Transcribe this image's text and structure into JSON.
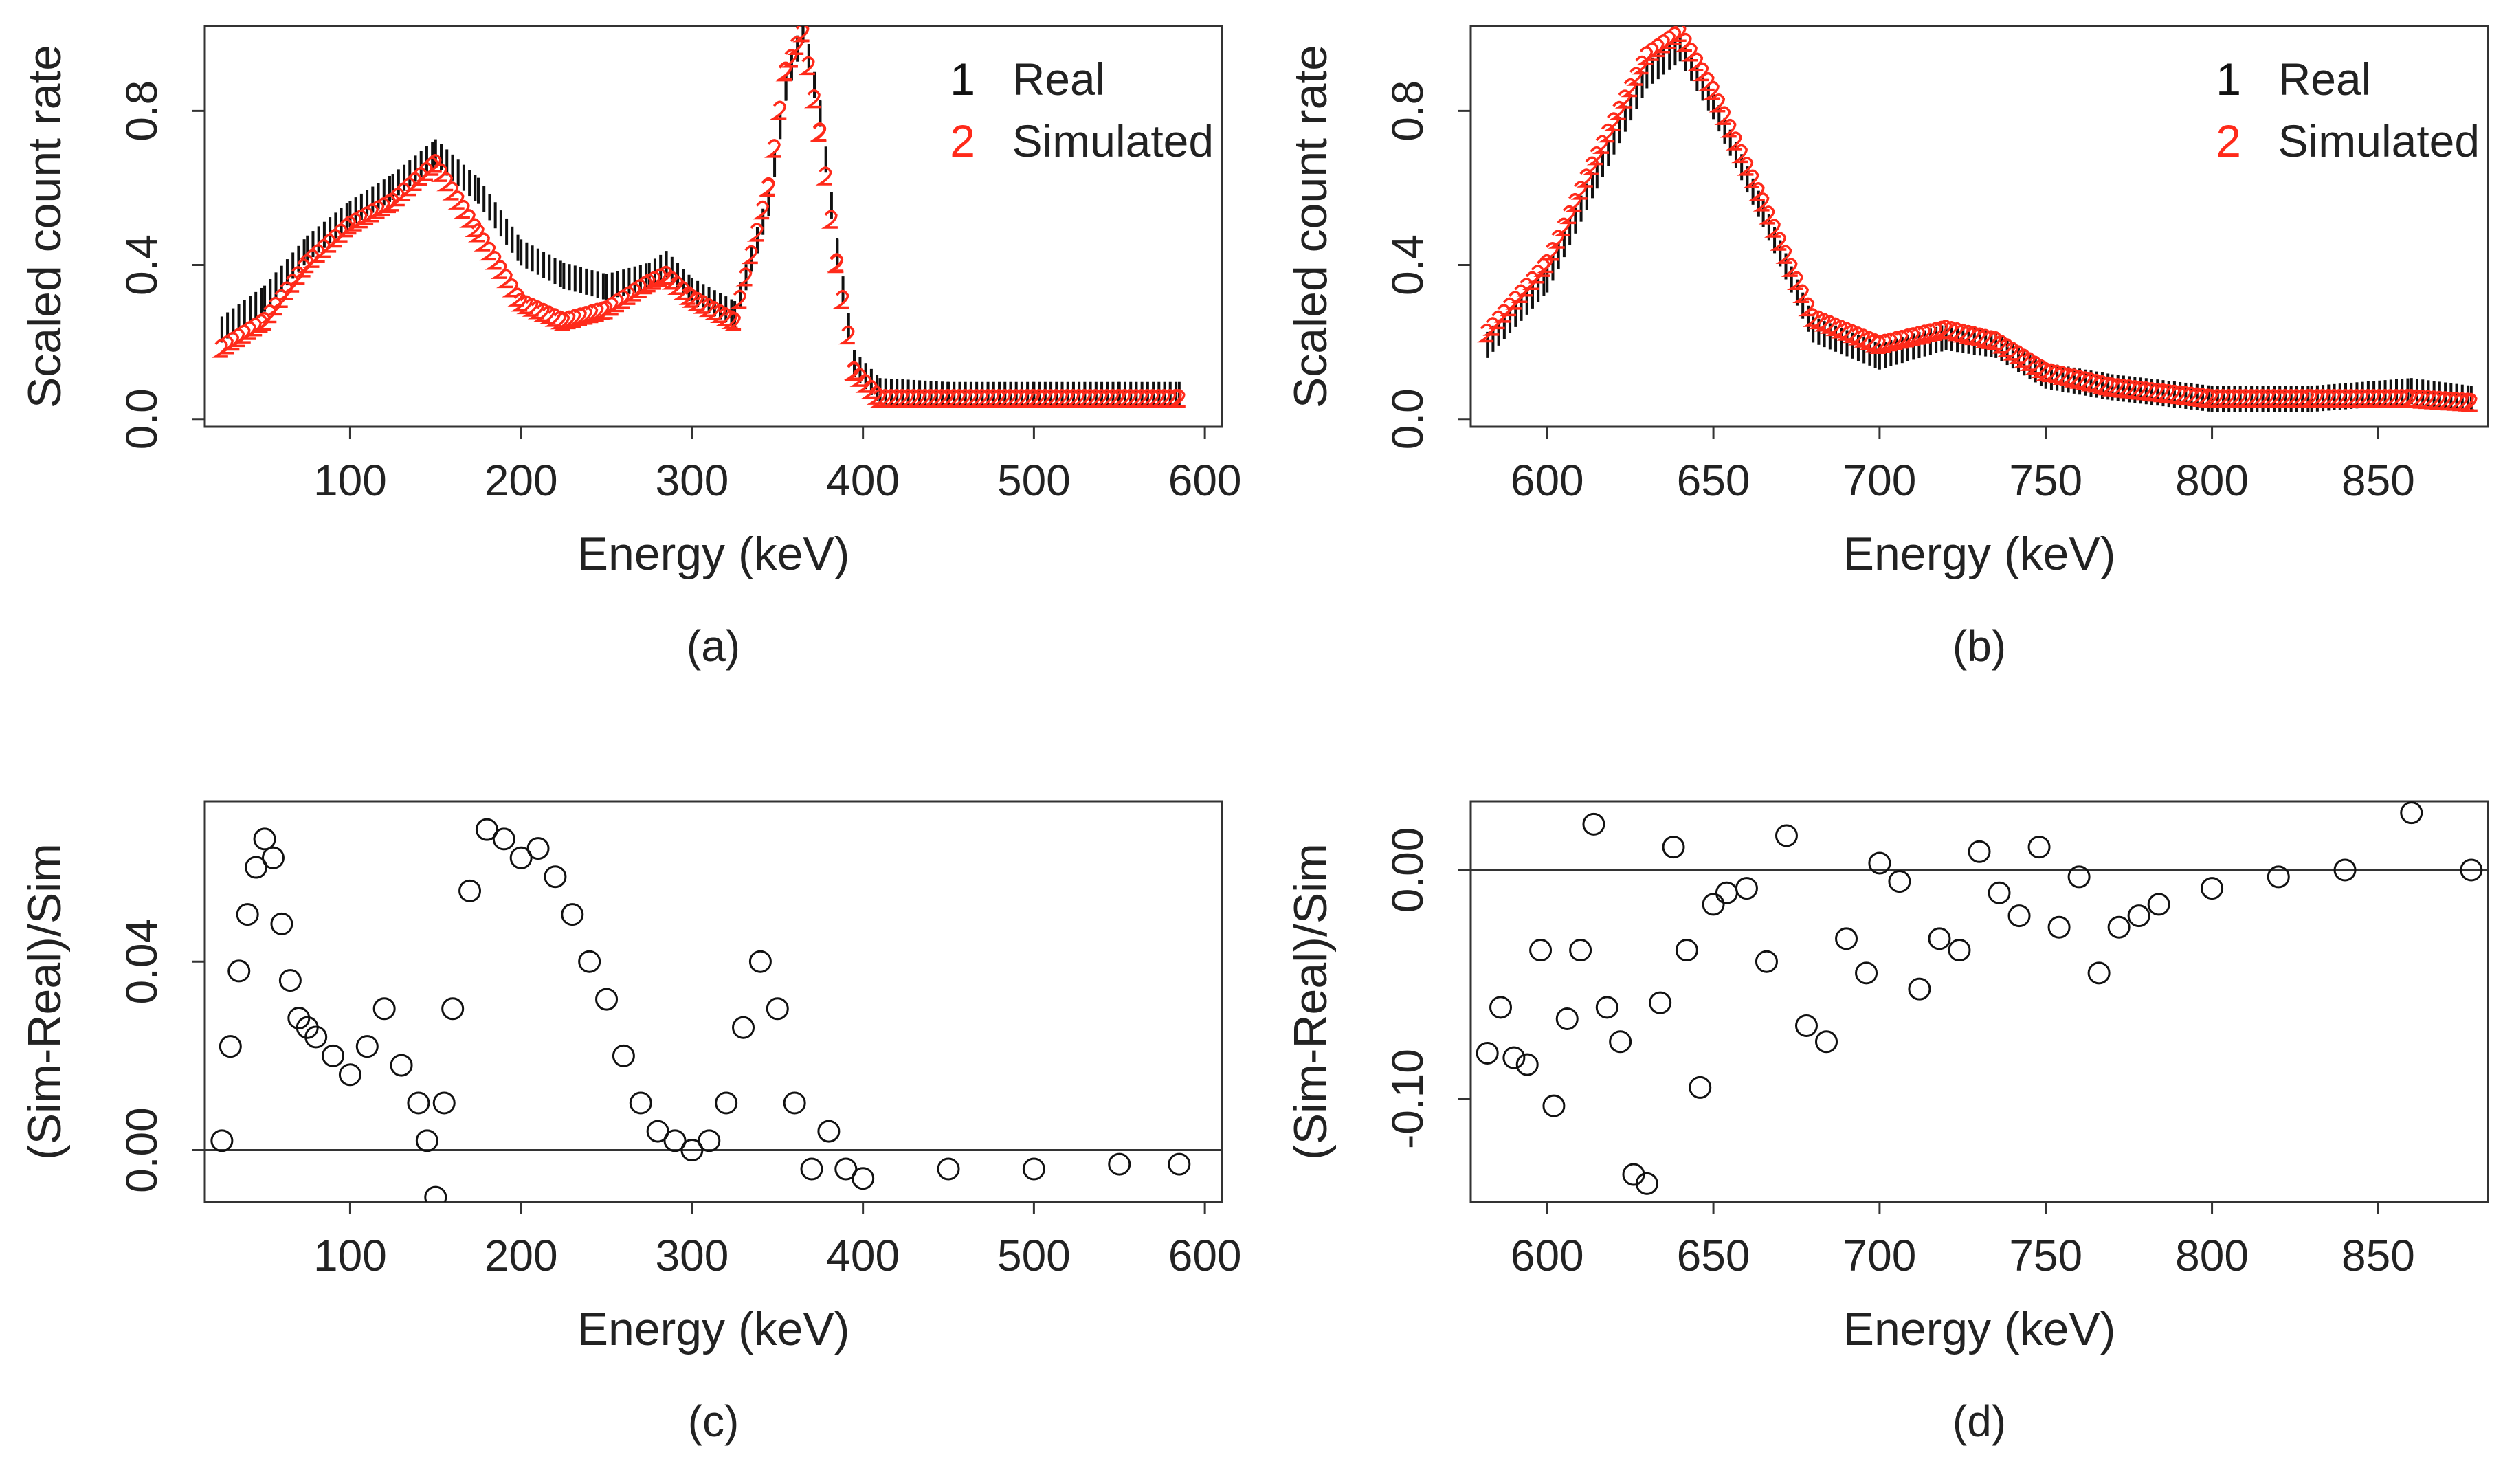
{
  "colors": {
    "real": "#111111",
    "simulated": "#ff2a1a",
    "axis": "#333333"
  },
  "chart_data": [
    {
      "id": "a",
      "type": "scatter",
      "caption": "(a)",
      "xlabel": "Energy (keV)",
      "ylabel": "Scaled count rate",
      "xlim": [
        15,
        610
      ],
      "ylim": [
        -0.02,
        1.02
      ],
      "xticks": [
        100,
        200,
        300,
        400,
        500,
        600
      ],
      "yticks": [
        0.0,
        0.4,
        0.8
      ],
      "ytick_labels": [
        "0.0",
        "0.4",
        "0.8"
      ],
      "legend": {
        "position": "top-right",
        "entries": [
          {
            "symbol": "1",
            "label": "Real",
            "color": "#111111"
          },
          {
            "symbol": "2",
            "label": "Simulated",
            "color": "#ff2a1a"
          }
        ]
      },
      "series": [
        {
          "name": "Real",
          "marker": "1",
          "color": "#111111",
          "x": [
            25,
            50,
            75,
            100,
            125,
            150,
            175,
            200,
            225,
            250,
            275,
            285,
            300,
            325,
            345,
            355,
            365,
            375,
            385,
            395,
            410,
            450,
            500,
            550,
            585
          ],
          "y": [
            0.22,
            0.3,
            0.43,
            0.52,
            0.59,
            0.68,
            0.58,
            0.42,
            0.36,
            0.33,
            0.36,
            0.39,
            0.32,
            0.26,
            0.55,
            0.85,
            1.0,
            0.78,
            0.42,
            0.13,
            0.06,
            0.05,
            0.05,
            0.05,
            0.05
          ]
        },
        {
          "name": "Simulated",
          "marker": "2",
          "color": "#ff2a1a",
          "x": [
            25,
            50,
            75,
            100,
            125,
            150,
            175,
            200,
            225,
            250,
            275,
            285,
            300,
            325,
            345,
            355,
            365,
            375,
            385,
            395,
            410,
            450,
            500,
            550,
            585
          ],
          "y": [
            0.18,
            0.25,
            0.4,
            0.5,
            0.56,
            0.66,
            0.48,
            0.3,
            0.25,
            0.28,
            0.35,
            0.37,
            0.31,
            0.25,
            0.6,
            0.9,
            1.0,
            0.74,
            0.4,
            0.12,
            0.05,
            0.05,
            0.05,
            0.05,
            0.05
          ]
        }
      ]
    },
    {
      "id": "b",
      "type": "scatter",
      "caption": "(b)",
      "xlabel": "Energy (keV)",
      "ylabel": "Scaled count rate",
      "xlim": [
        577,
        883
      ],
      "ylim": [
        -0.02,
        1.02
      ],
      "xticks": [
        600,
        650,
        700,
        750,
        800,
        850
      ],
      "yticks": [
        0.0,
        0.4,
        0.8
      ],
      "ytick_labels": [
        "0.0",
        "0.4",
        "0.8"
      ],
      "legend": {
        "position": "top-right",
        "entries": [
          {
            "symbol": "1",
            "label": "Real",
            "color": "#111111"
          },
          {
            "symbol": "2",
            "label": "Simulated",
            "color": "#ff2a1a"
          }
        ]
      },
      "series": [
        {
          "name": "Real",
          "marker": "1",
          "color": "#111111",
          "x": [
            582,
            600,
            615,
            630,
            640,
            650,
            665,
            680,
            700,
            720,
            735,
            750,
            770,
            800,
            830,
            860,
            878
          ],
          "y": [
            0.18,
            0.35,
            0.62,
            0.88,
            0.95,
            0.8,
            0.52,
            0.22,
            0.15,
            0.2,
            0.18,
            0.1,
            0.07,
            0.04,
            0.04,
            0.06,
            0.04
          ]
        },
        {
          "name": "Simulated",
          "marker": "2",
          "color": "#ff2a1a",
          "x": [
            582,
            600,
            615,
            630,
            640,
            650,
            665,
            680,
            700,
            720,
            735,
            750,
            770,
            800,
            830,
            860,
            878
          ],
          "y": [
            0.22,
            0.4,
            0.68,
            0.94,
            1.0,
            0.85,
            0.56,
            0.26,
            0.19,
            0.23,
            0.2,
            0.12,
            0.08,
            0.05,
            0.05,
            0.05,
            0.04
          ]
        }
      ]
    },
    {
      "id": "c",
      "type": "scatter",
      "caption": "(c)",
      "xlabel": "Energy (keV)",
      "ylabel": "(Sim-Real)/Sim",
      "xlim": [
        15,
        610
      ],
      "ylim": [
        -0.011,
        0.074
      ],
      "xticks": [
        100,
        200,
        300,
        400,
        500,
        600
      ],
      "yticks": [
        0.0,
        0.04
      ],
      "ytick_labels": [
        "0.00",
        "0.04"
      ],
      "reference_line": 0.0,
      "series": [
        {
          "name": "Residual",
          "marker": "circle",
          "color": "#111111",
          "x": [
            25,
            30,
            35,
            40,
            45,
            50,
            55,
            60,
            65,
            70,
            75,
            80,
            90,
            100,
            110,
            120,
            130,
            140,
            145,
            150,
            155,
            160,
            170,
            180,
            190,
            200,
            210,
            220,
            230,
            240,
            250,
            260,
            270,
            280,
            290,
            300,
            310,
            320,
            330,
            340,
            350,
            360,
            370,
            380,
            390,
            400,
            450,
            500,
            550,
            585
          ],
          "y": [
            0.002,
            0.022,
            0.038,
            0.05,
            0.06,
            0.066,
            0.062,
            0.048,
            0.036,
            0.028,
            0.026,
            0.024,
            0.02,
            0.016,
            0.022,
            0.03,
            0.018,
            0.01,
            0.002,
            -0.01,
            0.01,
            0.03,
            0.055,
            0.068,
            0.066,
            0.062,
            0.064,
            0.058,
            0.05,
            0.04,
            0.032,
            0.02,
            0.01,
            0.004,
            0.002,
            0.0,
            0.002,
            0.01,
            0.026,
            0.04,
            0.03,
            0.01,
            -0.004,
            0.004,
            -0.004,
            -0.006,
            -0.004,
            -0.004,
            -0.003,
            -0.003
          ]
        }
      ]
    },
    {
      "id": "d",
      "type": "scatter",
      "caption": "(d)",
      "xlabel": "Energy (keV)",
      "ylabel": "(Sim-Real)/Sim",
      "xlim": [
        577,
        883
      ],
      "ylim": [
        -0.145,
        0.03
      ],
      "xticks": [
        600,
        650,
        700,
        750,
        800,
        850
      ],
      "yticks": [
        -0.1,
        0.0
      ],
      "ytick_labels": [
        "-0.10",
        "0.00"
      ],
      "reference_line": 0.0,
      "series": [
        {
          "name": "Residual",
          "marker": "circle",
          "color": "#111111",
          "x": [
            582,
            586,
            590,
            594,
            598,
            602,
            606,
            610,
            614,
            618,
            622,
            626,
            630,
            634,
            638,
            642,
            646,
            650,
            654,
            660,
            666,
            672,
            678,
            684,
            690,
            696,
            700,
            706,
            712,
            718,
            724,
            730,
            736,
            742,
            748,
            754,
            760,
            766,
            772,
            778,
            784,
            800,
            820,
            840,
            860,
            878
          ],
          "y": [
            -0.08,
            -0.06,
            -0.082,
            -0.085,
            -0.035,
            -0.103,
            -0.065,
            -0.035,
            0.02,
            -0.06,
            -0.075,
            -0.133,
            -0.137,
            -0.058,
            0.01,
            -0.035,
            -0.095,
            -0.015,
            -0.01,
            -0.008,
            -0.04,
            0.015,
            -0.068,
            -0.075,
            -0.03,
            -0.045,
            0.003,
            -0.005,
            -0.052,
            -0.03,
            -0.035,
            0.008,
            -0.01,
            -0.02,
            0.01,
            -0.025,
            -0.003,
            -0.045,
            -0.025,
            -0.02,
            -0.015,
            -0.008,
            -0.003,
            0.0,
            0.025,
            0.0
          ]
        }
      ]
    }
  ]
}
